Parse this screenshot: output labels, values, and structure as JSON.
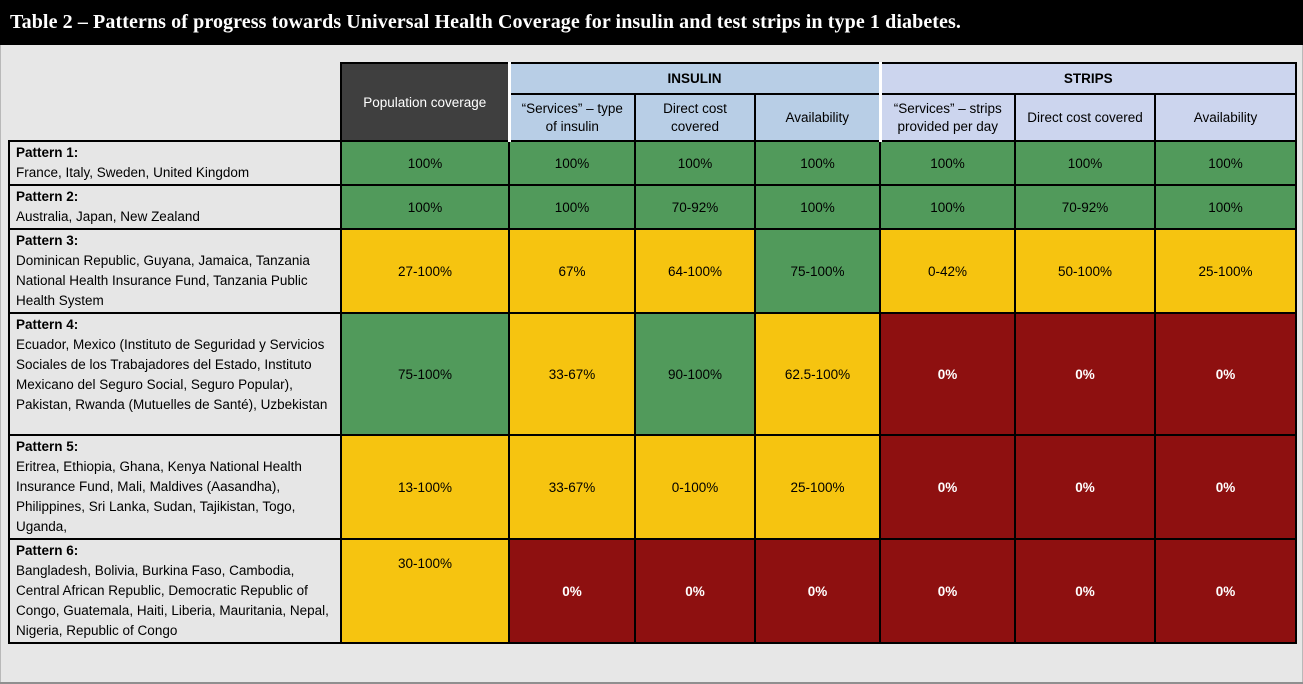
{
  "title": "Table 2 – Patterns of progress towards Universal Health Coverage for insulin and test strips in type 1 diabetes.",
  "table": {
    "corner_header": "Population coverage",
    "groups": [
      {
        "label": "INSULIN",
        "columns": [
          "“Services” – type of insulin",
          "Direct cost covered",
          "Availability"
        ]
      },
      {
        "label": "STRIPS",
        "columns": [
          "“Services” – strips provided per day",
          "Direct cost covered",
          "Availability"
        ]
      }
    ],
    "rows": [
      {
        "pattern": "Pattern 1:",
        "countries": "France, Italy, Sweden, United Kingdom",
        "cells": [
          {
            "text": "100%",
            "status": "green"
          },
          {
            "text": "100%",
            "status": "green"
          },
          {
            "text": "100%",
            "status": "green"
          },
          {
            "text": "100%",
            "status": "green"
          },
          {
            "text": "100%",
            "status": "green"
          },
          {
            "text": "100%",
            "status": "green"
          },
          {
            "text": "100%",
            "status": "green"
          }
        ]
      },
      {
        "pattern": "Pattern 2:",
        "countries": "Australia, Japan, New Zealand",
        "cells": [
          {
            "text": "100%",
            "status": "green"
          },
          {
            "text": "100%",
            "status": "green"
          },
          {
            "text": "70-92%",
            "status": "green"
          },
          {
            "text": "100%",
            "status": "green"
          },
          {
            "text": "100%",
            "status": "green"
          },
          {
            "text": "70-92%",
            "status": "green"
          },
          {
            "text": "100%",
            "status": "green"
          }
        ]
      },
      {
        "pattern": "Pattern 3:",
        "countries": "Dominican Republic, Guyana, Jamaica, Tanzania National Health Insurance Fund, Tanzania Public Health System",
        "cells": [
          {
            "text": "27-100%",
            "status": "yellow"
          },
          {
            "text": "67%",
            "status": "yellow"
          },
          {
            "text": "64-100%",
            "status": "yellow"
          },
          {
            "text": "75-100%",
            "status": "green"
          },
          {
            "text": "0-42%",
            "status": "yellow"
          },
          {
            "text": "50-100%",
            "status": "yellow"
          },
          {
            "text": "25-100%",
            "status": "yellow"
          }
        ]
      },
      {
        "pattern": "Pattern 4:",
        "countries": "Ecuador, Mexico (Instituto de Seguridad y Servicios Sociales de los Trabajadores del Estado, Instituto Mexicano del Seguro Social, Seguro Popular), Pakistan, Rwanda (Mutuelles de Santé), Uzbekistan",
        "cells": [
          {
            "text": "75-100%",
            "status": "green"
          },
          {
            "text": "33-67%",
            "status": "yellow"
          },
          {
            "text": "90-100%",
            "status": "green"
          },
          {
            "text": "62.5-100%",
            "status": "yellow"
          },
          {
            "text": "0%",
            "status": "red"
          },
          {
            "text": "0%",
            "status": "red"
          },
          {
            "text": "0%",
            "status": "red"
          }
        ]
      },
      {
        "pattern": "Pattern 5:",
        "countries": "Eritrea, Ethiopia, Ghana, Kenya National Health Insurance Fund, Mali, Maldives (Aasandha), Philippines, Sri Lanka, Sudan, Tajikistan, Togo, Uganda,",
        "cells": [
          {
            "text": "13-100%",
            "status": "yellow"
          },
          {
            "text": "33-67%",
            "status": "yellow"
          },
          {
            "text": "0-100%",
            "status": "yellow"
          },
          {
            "text": "25-100%",
            "status": "yellow"
          },
          {
            "text": "0%",
            "status": "red"
          },
          {
            "text": "0%",
            "status": "red"
          },
          {
            "text": "0%",
            "status": "red"
          }
        ]
      },
      {
        "pattern": "Pattern 6:",
        "countries": "Bangladesh, Bolivia, Burkina Faso, Cambodia, Central African Republic, Democratic Republic of Congo, Guatemala, Haiti, Liberia, Mauritania, Nepal, Nigeria, Republic of Congo",
        "cells": [
          {
            "text": "30-100%",
            "status": "yellow"
          },
          {
            "text": "0%",
            "status": "red"
          },
          {
            "text": "0%",
            "status": "red"
          },
          {
            "text": "0%",
            "status": "red"
          },
          {
            "text": "0%",
            "status": "red"
          },
          {
            "text": "0%",
            "status": "red"
          },
          {
            "text": "0%",
            "status": "red"
          }
        ]
      }
    ]
  },
  "colors": {
    "green": "#519A5B",
    "yellow": "#F6C410",
    "red": "#8E1010",
    "insulin_header": "#B8CEE6",
    "strips_header": "#CCD5EE",
    "population_header": "#3F3F3F",
    "label_bg": "#E6E6E6",
    "page_bg": "#E7E7E7",
    "title_bg": "#000000",
    "title_fg": "#FFFFFF"
  }
}
